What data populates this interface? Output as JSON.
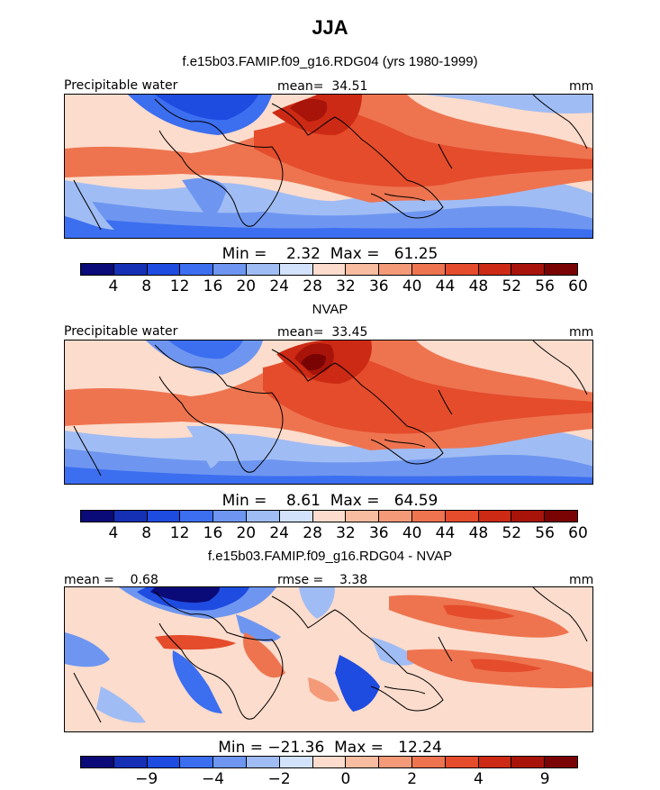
{
  "title": "JJA",
  "panels": [
    {
      "title": "f.e15b03.FAMIP.f09_g16.RDG04 (yrs 1980-1999)",
      "left_label": "Precipitable water",
      "center_label": "mean=  34.51",
      "right_label": "mm",
      "min_max": "Min =    2.32  Max =   61.25",
      "ticks": [
        "4",
        "8",
        "12",
        "16",
        "20",
        "24",
        "28",
        "32",
        "36",
        "40",
        "44",
        "48",
        "52",
        "56",
        "60"
      ]
    },
    {
      "title": "NVAP",
      "left_label": "Precipitable water",
      "center_label": "mean=  33.45",
      "right_label": "mm",
      "min_max": "Min =    8.61  Max =   64.59",
      "ticks": [
        "4",
        "8",
        "12",
        "16",
        "20",
        "24",
        "28",
        "32",
        "36",
        "40",
        "44",
        "48",
        "52",
        "56",
        "60"
      ]
    },
    {
      "title": "f.e15b03.FAMIP.f09_g16.RDG04 - NVAP",
      "left_label": "mean =    0.68",
      "center_label": "rmse =    3.38",
      "right_label": "mm",
      "min_max": "Min = −21.36  Max =   12.24",
      "ticks": [
        "−9",
        "−4",
        "−2",
        "0",
        "2",
        "4",
        "9"
      ]
    }
  ],
  "colors": {
    "scale": [
      "#0a0a78",
      "#1530b4",
      "#1e4be0",
      "#3c6ef0",
      "#6e96f0",
      "#a0bcf4",
      "#d2e2fa",
      "#fcdccc",
      "#f8bca0",
      "#f49a78",
      "#ee7450",
      "#e44c2c",
      "#cc2a14",
      "#a8140a",
      "#7a0404"
    ],
    "coast": "#000000"
  }
}
